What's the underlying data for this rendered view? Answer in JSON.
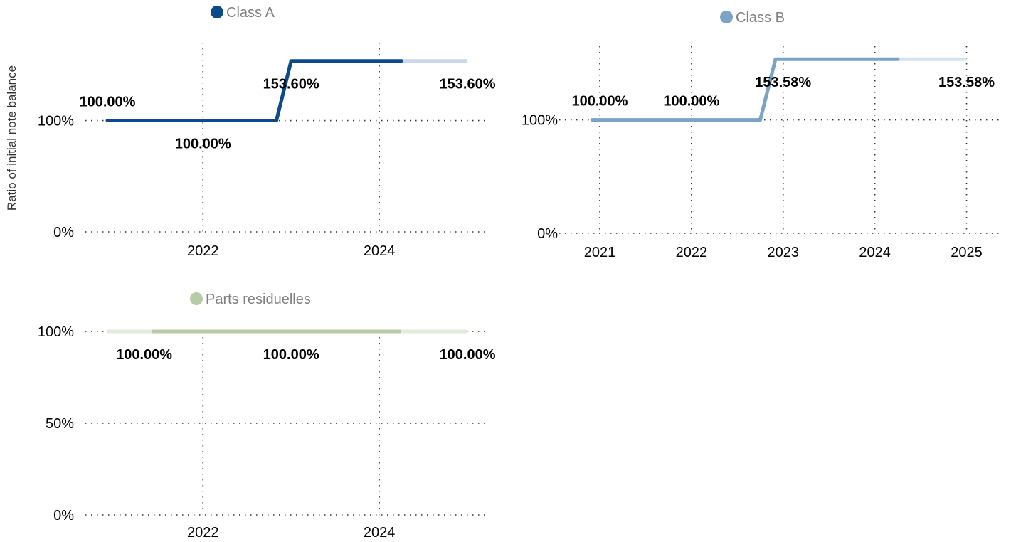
{
  "y_axis_title": "Ratio of initial note balance",
  "chart_data": [
    {
      "type": "line",
      "series": [
        {
          "name": "Class A",
          "color": "#0b4a8b",
          "fade_color": "#c9d9ea",
          "points": [
            {
              "x": "2020-12",
              "y": 100.0
            },
            {
              "x": "2022-11",
              "y": 100.0
            },
            {
              "x": "2023-01",
              "y": 153.6
            },
            {
              "x": "2024-04",
              "y": 153.6
            },
            {
              "x": "2025-01",
              "y": 153.6
            }
          ]
        }
      ],
      "yticks": [
        0,
        100
      ],
      "ytick_labels": [
        "0%",
        "100%"
      ],
      "ylim": [
        0,
        170
      ],
      "xticks": [
        "2022-01-01",
        "2024-01-01"
      ],
      "xtick_labels": [
        "2022",
        "2024"
      ],
      "xlim": [
        "2020-09",
        "2025-04"
      ],
      "grid": true,
      "legend_position": "top",
      "data_labels": [
        {
          "x": "2020-12",
          "y": 100.0,
          "text": "100.00%",
          "position": "above"
        },
        {
          "x": "2022-01",
          "y": 100.0,
          "text": "100.00%",
          "position": "below"
        },
        {
          "x": "2023-01",
          "y": 153.6,
          "text": "153.60%",
          "position": "below"
        },
        {
          "x": "2025-01",
          "y": 153.6,
          "text": "153.60%",
          "position": "below"
        }
      ]
    },
    {
      "type": "line",
      "series": [
        {
          "name": "Class B",
          "color": "#7ba3c6",
          "fade_color": "#d6e3ef",
          "points": [
            {
              "x": "2020-12",
              "y": 100.0
            },
            {
              "x": "2022-10",
              "y": 100.0
            },
            {
              "x": "2022-12",
              "y": 153.58
            },
            {
              "x": "2024-04",
              "y": 153.58
            },
            {
              "x": "2025-01",
              "y": 153.58
            }
          ]
        }
      ],
      "yticks": [
        0,
        100
      ],
      "ytick_labels": [
        "0%",
        "100%"
      ],
      "ylim": [
        0,
        165
      ],
      "xticks": [
        "2021-01-01",
        "2022-01-01",
        "2023-01-01",
        "2024-01-01",
        "2025-01-01"
      ],
      "xtick_labels": [
        "2021",
        "2022",
        "2023",
        "2024",
        "2025"
      ],
      "xlim": [
        "2020-09",
        "2025-03"
      ],
      "grid": true,
      "legend_position": "top",
      "data_labels": [
        {
          "x": "2021-01",
          "y": 100.0,
          "text": "100.00%",
          "position": "above"
        },
        {
          "x": "2022-01",
          "y": 100.0,
          "text": "100.00%",
          "position": "above"
        },
        {
          "x": "2023-01",
          "y": 153.58,
          "text": "153.58%",
          "position": "below"
        },
        {
          "x": "2025-01",
          "y": 153.58,
          "text": "153.58%",
          "position": "below"
        }
      ]
    },
    {
      "type": "line",
      "series": [
        {
          "name": "Parts residuelles",
          "color": "#b7cba6",
          "fade_color": "#e3ebdc",
          "points": [
            {
              "x": "2020-12",
              "y": 100.0
            },
            {
              "x": "2025-01",
              "y": 100.0
            }
          ]
        }
      ],
      "yticks": [
        0,
        50,
        100
      ],
      "ytick_labels": [
        "0%",
        "50%",
        "100%"
      ],
      "ylim": [
        0,
        100
      ],
      "xticks": [
        "2022-01-01",
        "2024-01-01"
      ],
      "xtick_labels": [
        "2022",
        "2024"
      ],
      "xlim": [
        "2020-09",
        "2025-04"
      ],
      "grid": true,
      "legend_position": "top",
      "data_labels": [
        {
          "x": "2021-05",
          "y": 100.0,
          "text": "100.00%",
          "position": "below"
        },
        {
          "x": "2023-01",
          "y": 100.0,
          "text": "100.00%",
          "position": "below"
        },
        {
          "x": "2025-01",
          "y": 100.0,
          "text": "100.00%",
          "position": "below"
        }
      ]
    }
  ]
}
